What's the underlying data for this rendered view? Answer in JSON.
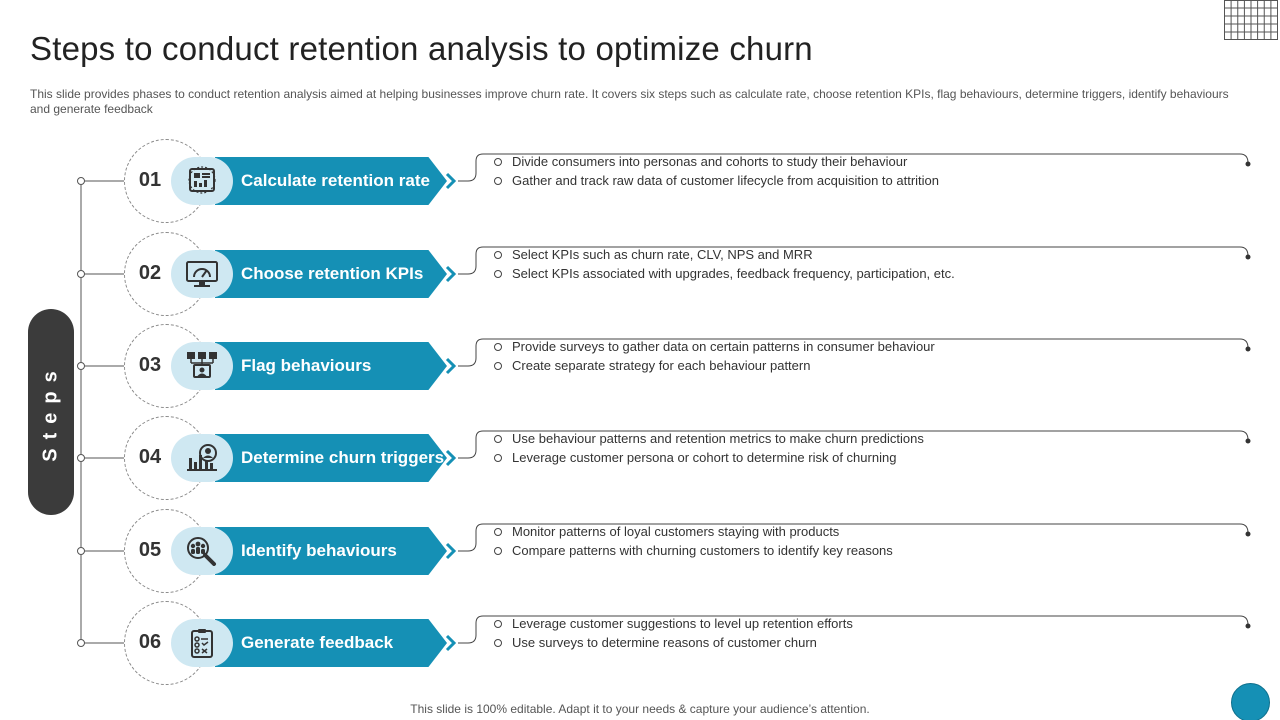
{
  "title": "Steps to conduct retention analysis to optimize churn",
  "subtitle": "This slide provides phases to conduct retention analysis aimed at helping businesses improve churn rate. It covers six steps such as calculate rate, choose retention KPIs, flag behaviours, determine triggers, identify behaviours and generate feedback",
  "side_label": "Steps",
  "steps": [
    {
      "number": "01",
      "label": "Calculate retention rate",
      "icon": "dashboard-report-icon",
      "bullets": [
        "Divide  consumers into personas and cohorts to study their behaviour",
        "Gather and track raw data of customer lifecycle from acquisition to attrition"
      ]
    },
    {
      "number": "02",
      "label": "Choose retention KPIs",
      "icon": "monitor-gauge-icon",
      "bullets": [
        "Select KPIs such as churn rate, CLV, NPS and MRR",
        "Select KPIs associated with upgrades,  feedback frequency,  participation,  etc."
      ]
    },
    {
      "number": "03",
      "label": "Flag behaviours",
      "icon": "network-user-icon",
      "bullets": [
        "Provide  surveys to gather data on certain patterns in consumer behaviour",
        "Create separate strategy for each behaviour  pattern"
      ]
    },
    {
      "number": "04",
      "label": "Determine churn triggers",
      "icon": "chart-user-icon",
      "bullets": [
        "Use behaviour  patterns and retention metrics to make churn predictions",
        "Leverage  customer persona  or cohort to determine risk of churning"
      ]
    },
    {
      "number": "05",
      "label": "Identify behaviours",
      "icon": "group-magnifier-icon",
      "bullets": [
        "Monitor patterns of loyal customers staying with products",
        "Compare  patterns with churning customers to identify  key reasons"
      ]
    },
    {
      "number": "06",
      "label": "Generate feedback",
      "icon": "clipboard-checklist-icon",
      "bullets": [
        "Leverage  customer suggestions to level  up retention  efforts",
        "Use surveys  to determine  reasons of customer churn"
      ]
    }
  ],
  "footer": "This slide is 100% editable. Adapt it to your needs & capture your audience’s attention.",
  "colors": {
    "accent": "#1590b5",
    "icon_bubble": "#cfe8f2",
    "pill": "#3b3b3b",
    "text": "#333333"
  }
}
